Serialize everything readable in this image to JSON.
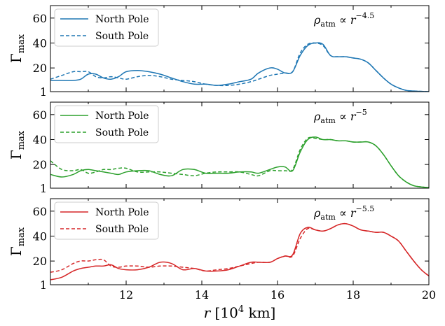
{
  "chart_data": [
    {
      "type": "line",
      "annotation": {
        "rho": "ρ",
        "sub": "atm",
        "prop": " ∝ ",
        "r": "r",
        "exp": "−4.5"
      },
      "ylabel": {
        "main": "Γ",
        "sub": "max"
      },
      "xlim": [
        10,
        20
      ],
      "ylim": [
        1,
        70
      ],
      "yticks": [
        "1",
        "20",
        "40",
        "60"
      ],
      "color": "#1f77b4",
      "series": [
        {
          "name": "North Pole",
          "style": "solid",
          "x": [
            10.0,
            10.3,
            10.6,
            10.8,
            11.0,
            11.2,
            11.4,
            11.6,
            11.8,
            12.0,
            12.3,
            12.6,
            12.9,
            13.2,
            13.5,
            13.8,
            14.1,
            14.4,
            14.7,
            15.0,
            15.3,
            15.5,
            15.8,
            16.0,
            16.2,
            16.4,
            16.6,
            16.8,
            17.0,
            17.2,
            17.4,
            17.6,
            17.8,
            18.0,
            18.2,
            18.4,
            18.6,
            18.8,
            19.0,
            19.2,
            19.4,
            19.6,
            19.8,
            20.0
          ],
          "y": [
            10,
            10,
            10,
            11,
            15,
            15,
            12,
            11,
            13,
            17,
            18,
            17,
            15,
            12,
            9,
            7,
            7,
            6,
            7,
            9,
            11,
            16,
            20,
            19,
            16,
            17,
            30,
            38,
            40,
            39,
            30,
            29,
            29,
            28,
            27,
            24,
            18,
            12,
            7,
            4,
            2,
            1.5,
            1.2,
            1
          ]
        },
        {
          "name": "South Pole",
          "style": "dashed",
          "x": [
            10.0,
            10.3,
            10.6,
            10.8,
            11.0,
            11.2,
            11.4,
            11.6,
            11.8,
            12.0,
            12.3,
            12.6,
            12.9,
            13.2,
            13.5,
            13.8,
            14.1,
            14.4,
            14.7,
            15.0,
            15.3,
            15.5,
            15.8,
            16.0,
            16.2,
            16.4,
            16.6,
            16.8,
            17.0,
            17.2,
            17.4,
            17.6,
            17.8,
            18.0,
            18.2,
            18.4,
            18.6,
            18.8,
            19.0,
            19.2,
            19.4,
            19.6,
            19.8,
            20.0
          ],
          "y": [
            11,
            14,
            17,
            17,
            17,
            13,
            12,
            13,
            12,
            11,
            13,
            14,
            13,
            11,
            10,
            9,
            7,
            6,
            6,
            7,
            9,
            11,
            14,
            15,
            16,
            17,
            32,
            39,
            40,
            38,
            30,
            29,
            29,
            28,
            27,
            24,
            18,
            12,
            7,
            4,
            2,
            1.5,
            1.2,
            1
          ]
        }
      ]
    },
    {
      "type": "line",
      "annotation": {
        "rho": "ρ",
        "sub": "atm",
        "prop": " ∝ ",
        "r": "r",
        "exp": "−5"
      },
      "ylabel": {
        "main": "Γ",
        "sub": "max"
      },
      "xlim": [
        10,
        20
      ],
      "ylim": [
        1,
        70
      ],
      "yticks": [
        "1",
        "20",
        "40",
        "60"
      ],
      "color": "#2ca02c",
      "series": [
        {
          "name": "North Pole",
          "style": "solid",
          "x": [
            10.0,
            10.3,
            10.6,
            10.8,
            11.0,
            11.2,
            11.4,
            11.6,
            11.8,
            12.0,
            12.3,
            12.6,
            12.9,
            13.2,
            13.5,
            13.8,
            14.1,
            14.4,
            14.7,
            15.0,
            15.3,
            15.5,
            15.8,
            16.0,
            16.2,
            16.4,
            16.6,
            16.8,
            17.0,
            17.2,
            17.4,
            17.6,
            17.8,
            18.0,
            18.2,
            18.4,
            18.6,
            18.8,
            19.0,
            19.2,
            19.4,
            19.6,
            19.8,
            20.0
          ],
          "y": [
            12,
            10,
            12,
            15,
            16,
            15,
            14,
            13,
            12,
            14,
            15,
            15,
            12,
            11,
            16,
            16,
            13,
            13,
            13,
            14,
            14,
            13,
            16,
            18,
            18,
            15,
            30,
            40,
            42,
            40,
            40,
            39,
            39,
            38,
            38,
            38,
            35,
            28,
            19,
            11,
            6,
            3,
            2,
            1.5
          ]
        },
        {
          "name": "South Pole",
          "style": "dashed",
          "x": [
            10.0,
            10.3,
            10.6,
            10.8,
            11.0,
            11.2,
            11.4,
            11.6,
            11.8,
            12.0,
            12.3,
            12.6,
            12.9,
            13.2,
            13.5,
            13.8,
            14.1,
            14.4,
            14.7,
            15.0,
            15.3,
            15.5,
            15.8,
            16.0,
            16.2,
            16.4,
            16.6,
            16.8,
            17.0,
            17.2,
            17.4,
            17.6,
            17.8,
            18.0,
            18.2,
            18.4,
            18.6,
            18.8,
            19.0,
            19.2,
            19.4,
            19.6,
            19.8,
            20.0
          ],
          "y": [
            23,
            16,
            15,
            16,
            13,
            14,
            16,
            16,
            17,
            17,
            14,
            14,
            14,
            13,
            12,
            11,
            13,
            14,
            14,
            14,
            12,
            11,
            15,
            15,
            15,
            16,
            32,
            41,
            41,
            40,
            40,
            39,
            39,
            38,
            38,
            38,
            35,
            28,
            19,
            11,
            6,
            3,
            2,
            1.5
          ]
        }
      ]
    },
    {
      "type": "line",
      "annotation": {
        "rho": "ρ",
        "sub": "atm",
        "prop": " ∝ ",
        "r": "r",
        "exp": "−5.5"
      },
      "ylabel": {
        "main": "Γ",
        "sub": "max"
      },
      "xlabel": {
        "r": "r",
        "unit_open": " [10",
        "unit_exp": "4",
        "unit_close": " km]"
      },
      "xlim": [
        10,
        20
      ],
      "ylim": [
        1,
        70
      ],
      "yticks": [
        "1",
        "20",
        "40",
        "60"
      ],
      "xticks": [
        "12",
        "14",
        "16",
        "18",
        "20"
      ],
      "color": "#d62728",
      "series": [
        {
          "name": "North Pole",
          "style": "solid",
          "x": [
            10.0,
            10.3,
            10.6,
            10.8,
            11.0,
            11.2,
            11.4,
            11.6,
            11.8,
            12.0,
            12.3,
            12.6,
            12.9,
            13.2,
            13.5,
            13.8,
            14.1,
            14.4,
            14.7,
            15.0,
            15.3,
            15.5,
            15.8,
            16.0,
            16.2,
            16.4,
            16.6,
            16.8,
            17.0,
            17.2,
            17.4,
            17.6,
            17.8,
            18.0,
            18.2,
            18.4,
            18.6,
            18.8,
            19.0,
            19.2,
            19.4,
            19.6,
            19.8,
            20.0
          ],
          "y": [
            5,
            7,
            12,
            14,
            15,
            16,
            16,
            17,
            14,
            13,
            13,
            15,
            19,
            18,
            13,
            14,
            12,
            12,
            13,
            16,
            19,
            19,
            19,
            22,
            24,
            25,
            42,
            47,
            45,
            44,
            46,
            49,
            50,
            48,
            45,
            44,
            43,
            43,
            40,
            36,
            28,
            20,
            13,
            8
          ]
        },
        {
          "name": "South Pole",
          "style": "dashed",
          "x": [
            10.0,
            10.3,
            10.6,
            10.8,
            11.0,
            11.2,
            11.4,
            11.6,
            11.8,
            12.0,
            12.3,
            12.6,
            12.9,
            13.2,
            13.5,
            13.8,
            14.1,
            14.4,
            14.7,
            15.0,
            15.3,
            15.5,
            15.8,
            16.0,
            16.2,
            16.4,
            16.6,
            16.8,
            17.0,
            17.2,
            17.4,
            17.6,
            17.8,
            18.0,
            18.2,
            18.4,
            18.6,
            18.8,
            19.0,
            19.2,
            19.4,
            19.6,
            19.8,
            20.0
          ],
          "y": [
            11,
            13,
            18,
            20,
            20,
            21,
            21,
            16,
            15,
            16,
            16,
            15,
            16,
            16,
            15,
            14,
            12,
            13,
            14,
            16,
            18,
            19,
            19,
            22,
            24,
            24,
            38,
            46,
            45,
            44,
            46,
            49,
            50,
            48,
            45,
            44,
            43,
            43,
            40,
            36,
            28,
            20,
            13,
            8
          ]
        }
      ]
    }
  ]
}
